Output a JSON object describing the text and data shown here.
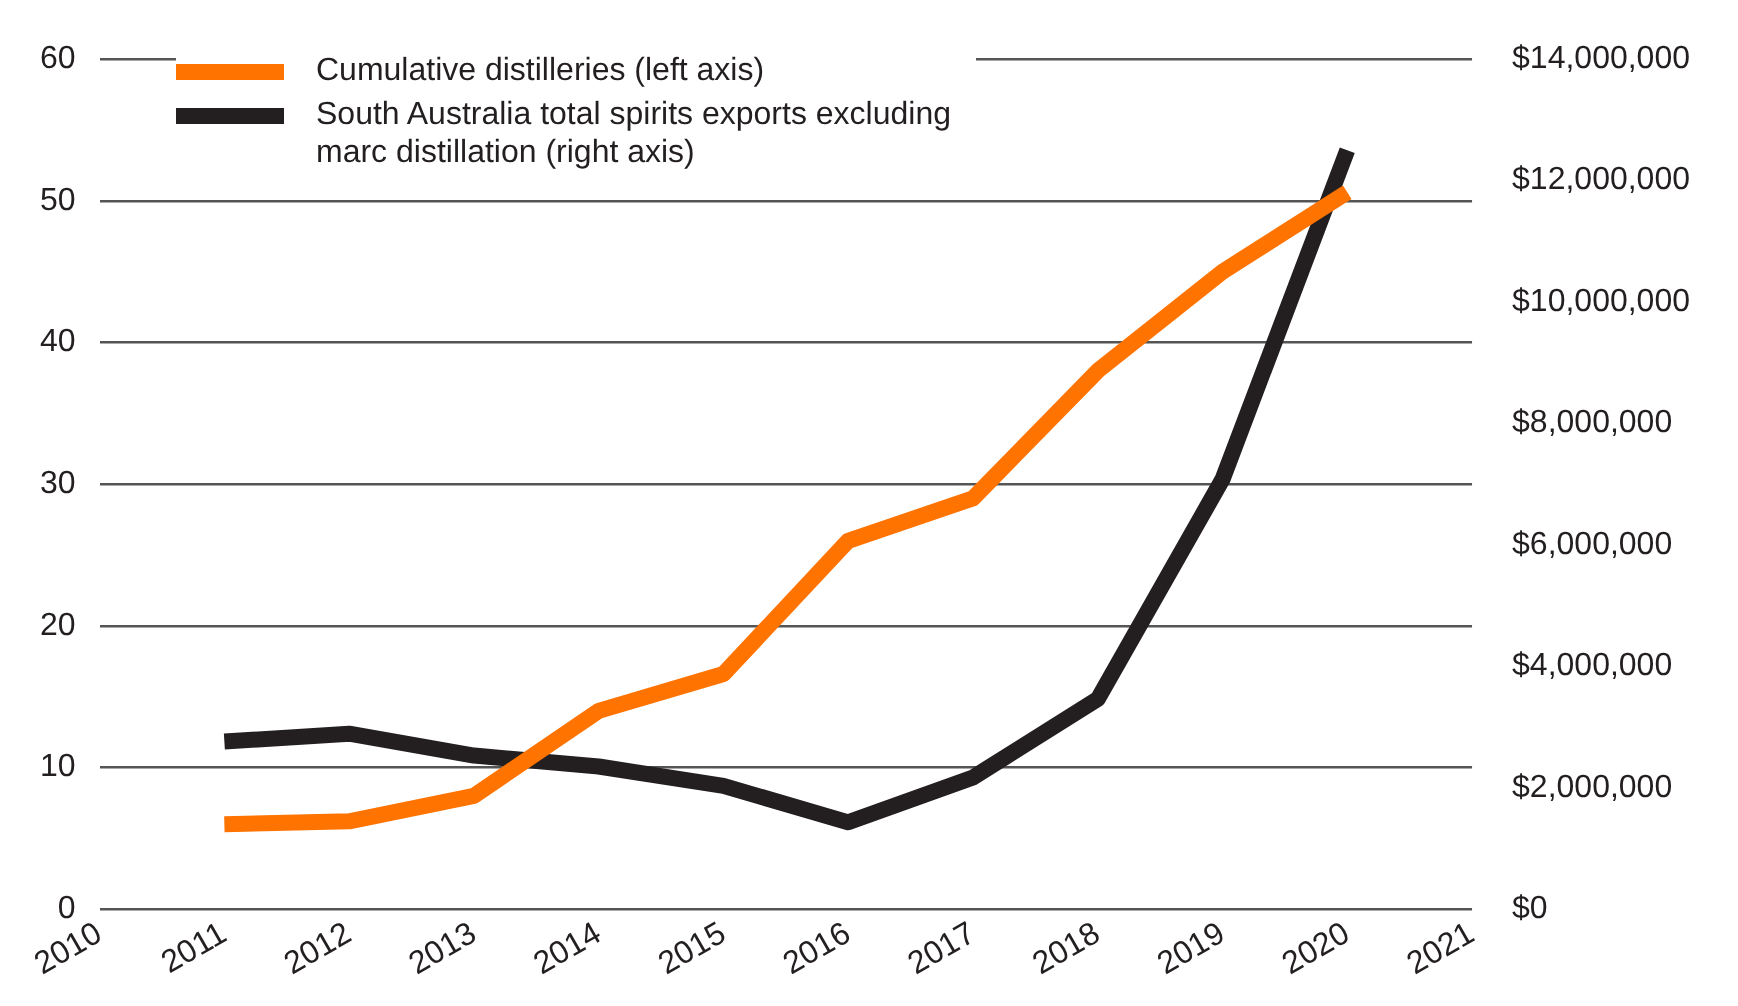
{
  "chart_data": {
    "type": "line",
    "x": [
      2011,
      2012,
      2013,
      2014,
      2015,
      2016,
      2017,
      2018,
      2019,
      2020
    ],
    "series": [
      {
        "name": "Cumulative distilleries (left axis)",
        "color": "#ff7300",
        "values": [
          6,
          6.2,
          8,
          14,
          16.6,
          26,
          29,
          38,
          45,
          50.6
        ]
      },
      {
        "name": "South Australia total spirits exports excluding marc distillation (right axis)",
        "color": "#231f20",
        "axis": "y2",
        "values": [
          2760000,
          2890000,
          2530000,
          2350000,
          2030000,
          1430000,
          2170000,
          3460000,
          7080000,
          12500000
        ]
      }
    ],
    "xlim": [
      2010,
      2021
    ],
    "xticks": [
      2010,
      2011,
      2012,
      2013,
      2014,
      2015,
      2016,
      2017,
      2018,
      2019,
      2020,
      2021
    ],
    "ylim": [
      0,
      60
    ],
    "yticks": [
      0,
      10,
      20,
      30,
      40,
      50,
      60
    ],
    "y2lim": [
      0,
      14000000
    ],
    "y2ticks": [
      {
        "value": 0,
        "label": "$0"
      },
      {
        "value": 2000000,
        "label": "$2,000,000"
      },
      {
        "value": 4000000,
        "label": "$4,000,000"
      },
      {
        "value": 6000000,
        "label": "$6,000,000"
      },
      {
        "value": 8000000,
        "label": "$8,000,000"
      },
      {
        "value": 10000000,
        "label": "$10,000,000"
      },
      {
        "value": 12000000,
        "label": "$12,000,000"
      },
      {
        "value": 14000000,
        "label": "$14,000,000"
      }
    ],
    "grid": "y",
    "legend": "top left",
    "marker": "none",
    "line_style": "solid"
  }
}
